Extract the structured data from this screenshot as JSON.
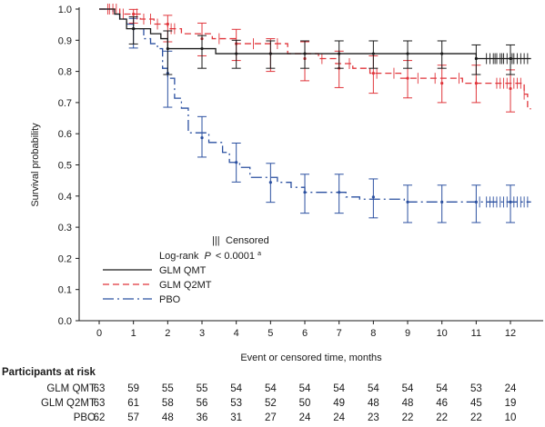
{
  "chart_data": {
    "type": "line",
    "subtype": "kaplan-meier step curves with 95% CI error bars and censor marks",
    "ylabel": "Survival probability",
    "xlabel": "Event or censored time, months",
    "xlim": [
      0,
      12.6
    ],
    "ylim": [
      0.0,
      1.0
    ],
    "xticks": [
      "0",
      "1",
      "2",
      "3",
      "4",
      "5",
      "6",
      "7",
      "8",
      "9",
      "10",
      "11",
      "12"
    ],
    "yticks": [
      "0.0",
      "0.1",
      "0.2",
      "0.3",
      "0.4",
      "0.5",
      "0.6",
      "0.7",
      "0.8",
      "0.9",
      "1.0"
    ],
    "grid": false,
    "legend": {
      "placement": "lower-left",
      "censor_label": "Censored",
      "test_label": "Log-rank",
      "test_p": "P < 0.0001",
      "test_superscript": "a"
    },
    "series": [
      {
        "name": "GLM QMT",
        "color": "#1a1a1a",
        "dash": "solid",
        "steps": [
          [
            0,
            1.0
          ],
          [
            0.45,
            0.984
          ],
          [
            0.6,
            0.968
          ],
          [
            0.8,
            0.937
          ],
          [
            1.5,
            0.921
          ],
          [
            1.8,
            0.905
          ],
          [
            2.0,
            0.873
          ],
          [
            3.4,
            0.857
          ],
          [
            11.0,
            0.841
          ]
        ],
        "errorbars": [
          [
            1,
            0.937,
            0.888,
            0.975
          ],
          [
            2,
            0.873,
            0.79,
            0.93
          ],
          [
            3,
            0.873,
            0.81,
            0.915
          ],
          [
            4,
            0.857,
            0.81,
            0.9
          ],
          [
            5,
            0.857,
            0.81,
            0.898
          ],
          [
            6,
            0.857,
            0.81,
            0.898
          ],
          [
            7,
            0.857,
            0.81,
            0.898
          ],
          [
            8,
            0.857,
            0.81,
            0.898
          ],
          [
            9,
            0.857,
            0.81,
            0.898
          ],
          [
            10,
            0.857,
            0.81,
            0.898
          ],
          [
            11,
            0.841,
            0.79,
            0.885
          ],
          [
            12,
            0.841,
            0.79,
            0.885
          ]
        ],
        "censors": [
          11.3,
          11.4,
          11.5,
          11.55,
          11.6,
          11.7,
          11.75,
          11.8,
          11.9,
          12.0,
          12.05,
          12.1,
          12.2,
          12.3,
          12.4,
          12.5
        ]
      },
      {
        "name": "GLM Q2MT",
        "color": "#e0353b",
        "dash": "7,4",
        "steps": [
          [
            0,
            1.0
          ],
          [
            0.6,
            0.984
          ],
          [
            1.2,
            0.968
          ],
          [
            1.6,
            0.952
          ],
          [
            2.0,
            0.937
          ],
          [
            2.4,
            0.921
          ],
          [
            3.3,
            0.905
          ],
          [
            4.0,
            0.889
          ],
          [
            5.5,
            0.857
          ],
          [
            6.4,
            0.841
          ],
          [
            6.9,
            0.825
          ],
          [
            7.4,
            0.81
          ],
          [
            7.9,
            0.794
          ],
          [
            8.8,
            0.778
          ],
          [
            10.6,
            0.762
          ],
          [
            12.4,
            0.727
          ],
          [
            12.5,
            0.68
          ]
        ],
        "errorbars": [
          [
            1,
            0.984,
            0.955,
            0.999
          ],
          [
            2,
            0.952,
            0.895,
            0.98
          ],
          [
            3,
            0.905,
            0.85,
            0.955
          ],
          [
            4,
            0.889,
            0.835,
            0.935
          ],
          [
            5,
            0.857,
            0.8,
            0.905
          ],
          [
            6,
            0.841,
            0.77,
            0.895
          ],
          [
            7,
            0.81,
            0.748,
            0.865
          ],
          [
            8,
            0.794,
            0.73,
            0.85
          ],
          [
            9,
            0.778,
            0.715,
            0.835
          ],
          [
            10,
            0.762,
            0.7,
            0.82
          ],
          [
            11,
            0.762,
            0.7,
            0.82
          ],
          [
            12,
            0.745,
            0.67,
            0.805
          ]
        ],
        "censors": [
          0.25,
          0.3,
          0.4,
          0.5,
          0.6,
          0.7,
          1.1,
          1.3,
          1.5,
          1.7,
          2.1,
          2.2,
          3.5,
          4.5,
          5.2,
          6.5,
          7.3,
          8.1,
          8.6,
          9.3,
          9.8,
          10.5,
          11.0,
          11.6,
          11.7,
          11.8,
          11.9,
          12.0,
          12.1,
          12.2,
          12.3,
          12.4
        ]
      },
      {
        "name": "PBO",
        "color": "#2b50a0",
        "dash": "12,4,2,4",
        "steps": [
          [
            0,
            1.0
          ],
          [
            0.4,
            0.984
          ],
          [
            0.6,
            0.968
          ],
          [
            0.8,
            0.952
          ],
          [
            1.0,
            0.937
          ],
          [
            1.3,
            0.905
          ],
          [
            1.5,
            0.889
          ],
          [
            1.7,
            0.873
          ],
          [
            1.85,
            0.81
          ],
          [
            2.0,
            0.778
          ],
          [
            2.2,
            0.714
          ],
          [
            2.4,
            0.682
          ],
          [
            2.6,
            0.603
          ],
          [
            3.2,
            0.572
          ],
          [
            3.6,
            0.54
          ],
          [
            3.8,
            0.508
          ],
          [
            4.1,
            0.492
          ],
          [
            4.4,
            0.46
          ],
          [
            5.2,
            0.444
          ],
          [
            5.6,
            0.428
          ],
          [
            6.0,
            0.412
          ],
          [
            7.2,
            0.397
          ],
          [
            7.6,
            0.39
          ],
          [
            8.9,
            0.381
          ],
          [
            12.6,
            0.381
          ]
        ],
        "errorbars": [
          [
            1,
            0.937,
            0.875,
            0.97
          ],
          [
            2,
            0.794,
            0.685,
            0.865
          ],
          [
            3,
            0.587,
            0.525,
            0.655
          ],
          [
            4,
            0.508,
            0.445,
            0.57
          ],
          [
            5,
            0.444,
            0.38,
            0.505
          ],
          [
            6,
            0.412,
            0.345,
            0.47
          ],
          [
            7,
            0.412,
            0.345,
            0.47
          ],
          [
            8,
            0.397,
            0.33,
            0.455
          ],
          [
            9,
            0.381,
            0.315,
            0.435
          ],
          [
            10,
            0.381,
            0.315,
            0.435
          ],
          [
            11,
            0.381,
            0.315,
            0.435
          ],
          [
            12,
            0.381,
            0.315,
            0.435
          ]
        ],
        "censors": [
          11.1,
          11.3,
          11.4,
          11.5,
          11.6,
          11.7,
          11.8,
          11.9,
          12.0,
          12.1,
          12.2,
          12.3,
          12.4,
          12.5
        ]
      }
    ]
  },
  "risk_table": {
    "title": "Participants at risk",
    "rows": [
      {
        "label": "GLM QMT",
        "values": [
          "63",
          "59",
          "55",
          "55",
          "54",
          "54",
          "54",
          "54",
          "54",
          "54",
          "54",
          "53",
          "24"
        ]
      },
      {
        "label": "GLM Q2MT",
        "values": [
          "63",
          "61",
          "58",
          "56",
          "53",
          "52",
          "50",
          "49",
          "48",
          "48",
          "46",
          "45",
          "19"
        ]
      },
      {
        "label": "PBO",
        "values": [
          "62",
          "57",
          "48",
          "36",
          "31",
          "27",
          "24",
          "24",
          "23",
          "22",
          "22",
          "22",
          "10"
        ]
      }
    ]
  }
}
